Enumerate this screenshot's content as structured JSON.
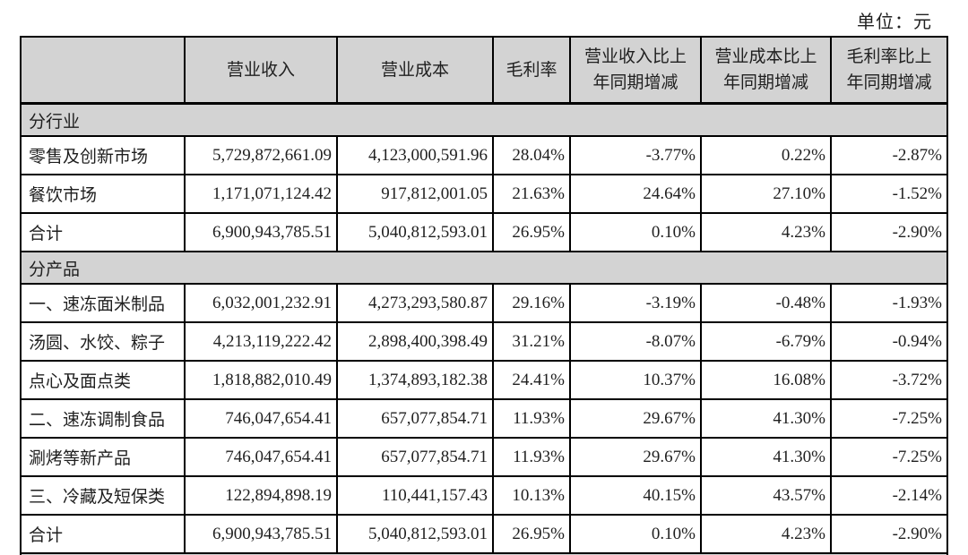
{
  "page": {
    "unit_label": "单位：元"
  },
  "colors": {
    "header_bg": "#d3d3d3",
    "section_bg": "#d3d3d3",
    "border": "#000000",
    "text": "#1f1f1f",
    "page_bg": "#ffffff"
  },
  "table": {
    "columns": [
      {
        "label": ""
      },
      {
        "label": "营业收入"
      },
      {
        "label": "营业成本"
      },
      {
        "label": "毛利率"
      },
      {
        "label": "营业收入比上年同期增减"
      },
      {
        "label": "营业成本比上年同期增减"
      },
      {
        "label": "毛利率比上年同期增减"
      }
    ],
    "rows": [
      {
        "type": "section",
        "label": "分行业"
      },
      {
        "type": "data",
        "cells": [
          "零售及创新市场",
          "5,729,872,661.09",
          "4,123,000,591.96",
          "28.04%",
          "-3.77%",
          "0.22%",
          "-2.87%"
        ]
      },
      {
        "type": "data",
        "cells": [
          "餐饮市场",
          "1,171,071,124.42",
          "917,812,001.05",
          "21.63%",
          "24.64%",
          "27.10%",
          "-1.52%"
        ]
      },
      {
        "type": "data",
        "cells": [
          "合计",
          "6,900,943,785.51",
          "5,040,812,593.01",
          "26.95%",
          "0.10%",
          "4.23%",
          "-2.90%"
        ]
      },
      {
        "type": "section",
        "label": "分产品"
      },
      {
        "type": "data",
        "cells": [
          "一、速冻面米制品",
          "6,032,001,232.91",
          "4,273,293,580.87",
          "29.16%",
          "-3.19%",
          "-0.48%",
          "-1.93%"
        ]
      },
      {
        "type": "data",
        "cells": [
          "汤圆、水饺、粽子",
          "4,213,119,222.42",
          "2,898,400,398.49",
          "31.21%",
          "-8.07%",
          "-6.79%",
          "-0.94%"
        ]
      },
      {
        "type": "data",
        "cells": [
          "点心及面点类",
          "1,818,882,010.49",
          "1,374,893,182.38",
          "24.41%",
          "10.37%",
          "16.08%",
          "-3.72%"
        ]
      },
      {
        "type": "data",
        "cells": [
          "二、速冻调制食品",
          "746,047,654.41",
          "657,077,854.71",
          "11.93%",
          "29.67%",
          "41.30%",
          "-7.25%"
        ]
      },
      {
        "type": "data",
        "cells": [
          "涮烤等新产品",
          "746,047,654.41",
          "657,077,854.71",
          "11.93%",
          "29.67%",
          "41.30%",
          "-7.25%"
        ]
      },
      {
        "type": "data",
        "cells": [
          "三、冷藏及短保类",
          "122,894,898.19",
          "110,441,157.43",
          "10.13%",
          "40.15%",
          "43.57%",
          "-2.14%"
        ]
      },
      {
        "type": "data",
        "cells": [
          "合计",
          "6,900,943,785.51",
          "5,040,812,593.01",
          "26.95%",
          "0.10%",
          "4.23%",
          "-2.90%"
        ]
      },
      {
        "type": "section",
        "label": ""
      }
    ]
  }
}
